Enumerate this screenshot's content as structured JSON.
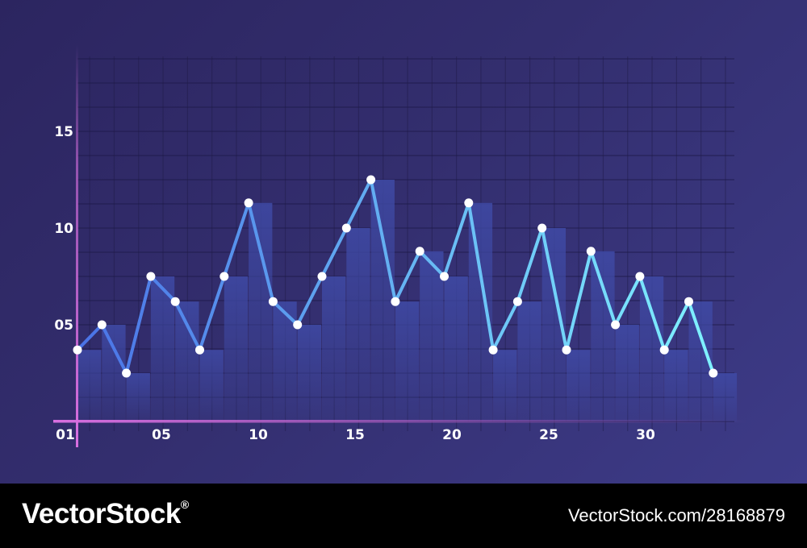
{
  "chart_data": {
    "type": "line",
    "title": "",
    "xlabel": "",
    "ylabel": "",
    "x_ticks": [
      "01",
      "05",
      "10",
      "15",
      "20",
      "25",
      "30"
    ],
    "y_ticks": [
      "05",
      "10",
      "15"
    ],
    "ylim": [
      0,
      19
    ],
    "grid": true,
    "series": [
      {
        "values": [
          3.7,
          5.0,
          2.5,
          7.5,
          6.2,
          3.7,
          7.5,
          11.3,
          6.2,
          5.0,
          7.5,
          10.0,
          12.5,
          6.2,
          8.8,
          7.5,
          11.3,
          3.7,
          6.2,
          10.0,
          3.7,
          8.8,
          5.0,
          7.5,
          3.7,
          6.2,
          2.5
        ]
      }
    ],
    "bars": [
      {
        "values": [
          3.7,
          5.0,
          2.5,
          7.5,
          6.2,
          3.7,
          7.5,
          11.3,
          6.2,
          5.0,
          7.5,
          10.0,
          12.5,
          6.2,
          8.8,
          7.5,
          11.3,
          3.7,
          6.2,
          10.0,
          3.7,
          8.8,
          5.0,
          7.5,
          3.7,
          6.2,
          2.5
        ]
      }
    ]
  },
  "colors": {
    "background_start": "#2c2560",
    "background_end": "#3d3b88",
    "line_start": "#4a72e6",
    "line_end": "#7ff2ff",
    "axis": "#d86fe0",
    "bar": "#3f4aa6",
    "point": "#ffffff"
  },
  "watermark": {
    "brand": "VectorStock",
    "brand_mark": "®",
    "url": "VectorStock.com/28168879"
  }
}
